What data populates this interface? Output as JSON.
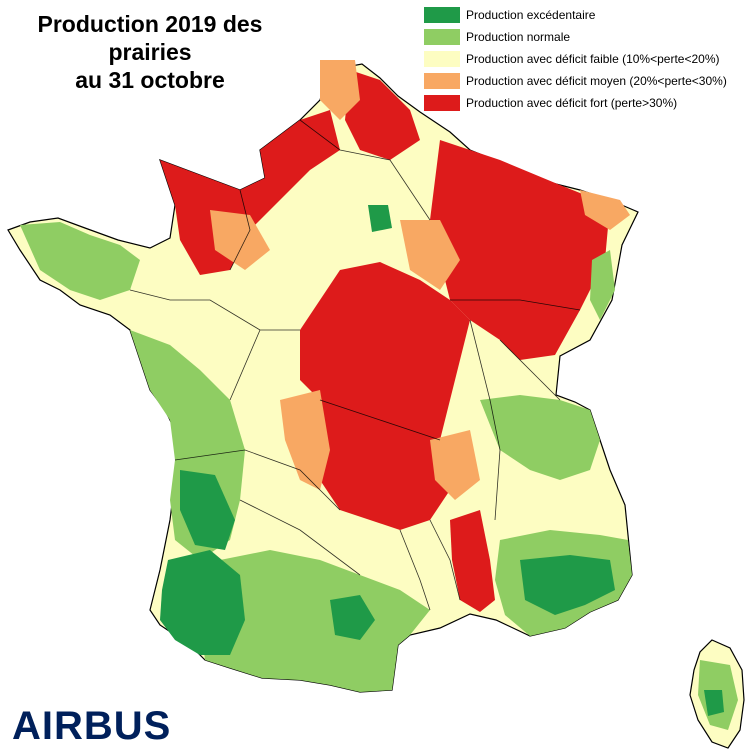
{
  "title": {
    "line1": "Production 2019 des prairies",
    "line2": "au 31 octobre"
  },
  "legend": [
    {
      "label": "Production excédentaire",
      "color": "#1f9a48"
    },
    {
      "label": "Production normale",
      "color": "#8fcd63"
    },
    {
      "label": "Production avec déficit faible (10%<perte<20%)",
      "color": "#fdfdc2"
    },
    {
      "label": "Production avec déficit moyen (20%<perte<30%)",
      "color": "#f8a863"
    },
    {
      "label": "Production avec déficit fort (perte>30%)",
      "color": "#dd1b1b"
    }
  ],
  "logo": {
    "text": "AIRBUS",
    "color": "#00205b"
  }
}
